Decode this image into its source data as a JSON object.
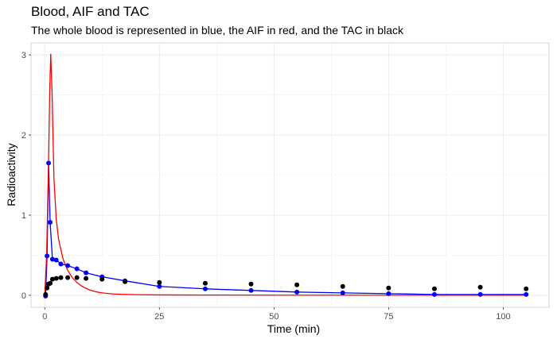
{
  "chart_data": {
    "type": "scatter",
    "title": "Blood, AIF and TAC",
    "subtitle": "The whole blood is represented in blue, the AIF in red, and the TAC in black",
    "xlabel": "Time (min)",
    "ylabel": "Radioactivity",
    "xlim": [
      -3,
      110
    ],
    "ylim": [
      -0.15,
      3.15
    ],
    "x_ticks": [
      0,
      25,
      50,
      75,
      100
    ],
    "y_ticks": [
      0,
      1,
      2,
      3
    ],
    "grid": true,
    "legend": "none",
    "series": [
      {
        "kind": "points+line",
        "color": "#0000ff",
        "x": [
          0.17,
          0.5,
          0.83,
          1.17,
          1.67,
          2.5,
          3.5,
          5,
          7,
          9,
          12.5,
          17.5,
          25,
          35,
          45,
          55,
          65,
          75,
          85,
          95,
          105
        ],
        "y": [
          -0.01,
          0.49,
          1.65,
          0.91,
          0.45,
          0.44,
          0.39,
          0.37,
          0.33,
          0.28,
          0.23,
          0.18,
          0.11,
          0.08,
          0.06,
          0.04,
          0.03,
          0.02,
          0.01,
          0.01,
          0.01
        ]
      },
      {
        "kind": "line",
        "color": "#ff0000",
        "x": [
          0,
          0.4,
          0.8,
          1.1,
          1.3,
          1.6,
          2,
          2.5,
          3,
          4,
          5,
          6,
          7,
          8,
          9,
          10,
          11,
          12,
          13,
          15,
          17,
          20,
          25,
          30,
          40,
          50,
          60,
          70,
          80,
          90,
          100,
          105
        ],
        "y": [
          0,
          0.5,
          1.6,
          2.6,
          3.01,
          2.5,
          1.45,
          0.95,
          0.7,
          0.45,
          0.31,
          0.22,
          0.16,
          0.115,
          0.085,
          0.062,
          0.046,
          0.034,
          0.026,
          0.016,
          0.011,
          0.007,
          0.004,
          0.003,
          0.002,
          0.001,
          0.001,
          0.001,
          0.0,
          0.0,
          0.0,
          0.0
        ]
      },
      {
        "kind": "points",
        "color": "#000000",
        "x": [
          0.17,
          0.5,
          0.83,
          1.17,
          1.67,
          2.5,
          3.5,
          5,
          7,
          9,
          12.5,
          17.5,
          25,
          35,
          45,
          55,
          65,
          75,
          85,
          95,
          105
        ],
        "y": [
          0.01,
          0.09,
          0.14,
          0.15,
          0.2,
          0.21,
          0.22,
          0.22,
          0.22,
          0.21,
          0.2,
          0.17,
          0.16,
          0.15,
          0.14,
          0.13,
          0.11,
          0.09,
          0.08,
          0.1,
          0.08
        ]
      }
    ]
  }
}
